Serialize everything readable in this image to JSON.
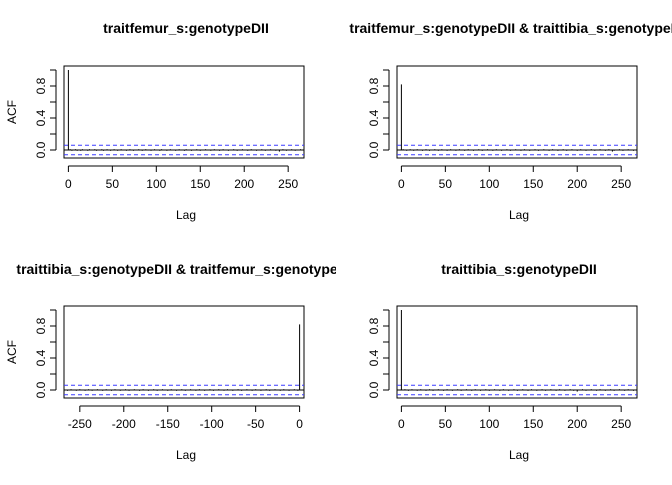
{
  "chart_data": [
    {
      "type": "bar",
      "title": "traitfemur_s:genotypeDII",
      "xlabel": "Lag",
      "ylabel": "ACF",
      "xlim": [
        -5,
        268
      ],
      "ylim": [
        -0.1,
        1.05
      ],
      "xticks": [
        0,
        50,
        100,
        150,
        200,
        250
      ],
      "yticks": [
        0.0,
        0.2,
        0.4,
        0.6,
        0.8,
        1.0
      ],
      "ytick_labels": [
        "0.0",
        "",
        "0.4",
        "",
        "0.8",
        ""
      ],
      "conf_band": 0.06,
      "x": [
        0,
        2,
        4,
        6,
        8,
        10,
        12,
        14,
        16,
        18,
        20,
        22,
        24,
        26,
        28,
        30,
        32,
        34,
        36,
        38,
        40,
        42,
        44,
        46,
        48,
        50,
        52,
        54,
        56,
        58,
        60,
        62,
        64,
        66,
        68,
        70,
        72,
        74,
        76,
        78,
        80,
        82,
        84,
        86,
        88,
        90,
        92,
        94,
        96,
        98,
        100,
        102,
        104,
        106,
        108,
        110,
        112,
        114,
        116,
        118,
        120,
        122,
        124,
        126,
        128,
        130,
        132,
        134,
        136,
        138,
        140,
        142,
        144,
        146,
        148,
        150,
        152,
        154,
        156,
        158,
        160,
        162,
        164,
        166,
        168,
        170,
        172,
        174,
        176,
        178,
        180,
        182,
        184,
        186,
        188,
        190,
        192,
        194,
        196,
        198,
        200,
        202,
        204,
        206,
        208,
        210,
        212,
        214,
        216,
        218,
        220,
        222,
        224,
        226,
        228,
        230,
        232,
        234,
        236,
        238,
        240,
        242,
        244,
        246,
        248,
        250,
        252,
        254,
        256,
        258,
        260,
        262,
        264
      ],
      "values": [
        1.0,
        0.01,
        -0.01,
        0.0,
        0.01,
        -0.01,
        0.0,
        -0.01,
        0.01,
        0.0,
        0.0,
        -0.01,
        0.01,
        0.0,
        0.0,
        0.01,
        -0.01,
        0.0,
        0.0,
        0.01,
        -0.01,
        0.0,
        0.01,
        0.0,
        -0.01,
        0.0,
        0.01,
        0.0,
        -0.01,
        0.0,
        0.01,
        0.0,
        0.0,
        -0.01,
        0.0,
        0.01,
        0.0,
        -0.01,
        0.0,
        0.0,
        0.01,
        0.0,
        -0.01,
        0.0,
        0.01,
        0.0,
        0.0,
        -0.01,
        0.0,
        0.01,
        0.0,
        0.0,
        -0.01,
        0.01,
        0.0,
        0.0,
        -0.01,
        0.0,
        0.01,
        0.0,
        0.0,
        -0.01,
        0.0,
        0.01,
        0.0,
        0.0,
        -0.01,
        0.01,
        0.0,
        0.0,
        -0.01,
        0.0,
        0.0,
        0.01,
        0.0,
        -0.01,
        0.0,
        0.0,
        0.01,
        0.0,
        0.0,
        -0.01,
        0.0,
        0.01,
        0.0,
        0.0,
        -0.01,
        0.0,
        0.01,
        0.0,
        0.0,
        -0.01,
        0.0,
        0.0,
        0.01,
        0.0,
        -0.01,
        0.0,
        0.0,
        0.01,
        0.0,
        0.0,
        -0.01,
        0.0,
        0.01,
        0.0,
        0.0,
        -0.01,
        0.0,
        0.0,
        0.01,
        0.0,
        -0.01,
        0.0,
        0.0,
        0.01,
        0.0,
        0.0,
        -0.01,
        0.0,
        -0.02,
        0.0,
        0.01,
        0.0,
        -0.01,
        0.0,
        0.0,
        0.01,
        0.0,
        -0.01,
        0.0,
        0.0,
        0.01
      ]
    },
    {
      "type": "bar",
      "title": "traitfemur_s:genotypeDII & traittibia_s:genotypeDII",
      "xlabel": "Lag",
      "ylabel": "",
      "xlim": [
        -5,
        268
      ],
      "ylim": [
        -0.1,
        1.05
      ],
      "xticks": [
        0,
        50,
        100,
        150,
        200,
        250
      ],
      "yticks": [
        0.0,
        0.2,
        0.4,
        0.6,
        0.8,
        1.0
      ],
      "ytick_labels": [
        "0.0",
        "",
        "0.4",
        "",
        "0.8",
        ""
      ],
      "conf_band": 0.06,
      "x": [
        0,
        2,
        4,
        6,
        8,
        10,
        12,
        14,
        16,
        18,
        20,
        22,
        24,
        26,
        28,
        30,
        32,
        34,
        36,
        38,
        40,
        42,
        44,
        46,
        48,
        50,
        52,
        54,
        56,
        58,
        60,
        62,
        64,
        66,
        68,
        70,
        72,
        74,
        76,
        78,
        80,
        82,
        84,
        86,
        88,
        90,
        92,
        94,
        96,
        98,
        100,
        102,
        104,
        106,
        108,
        110,
        112,
        114,
        116,
        118,
        120,
        122,
        124,
        126,
        128,
        130,
        132,
        134,
        136,
        138,
        140,
        142,
        144,
        146,
        148,
        150,
        152,
        154,
        156,
        158,
        160,
        162,
        164,
        166,
        168,
        170,
        172,
        174,
        176,
        178,
        180,
        182,
        184,
        186,
        188,
        190,
        192,
        194,
        196,
        198,
        200,
        202,
        204,
        206,
        208,
        210,
        212,
        214,
        216,
        218,
        220,
        222,
        224,
        226,
        228,
        230,
        232,
        234,
        236,
        238,
        240,
        242,
        244,
        246,
        248,
        250,
        252,
        254,
        256,
        258,
        260,
        262,
        264
      ],
      "values": [
        0.82,
        0.01,
        0.0,
        -0.01,
        0.0,
        0.01,
        0.0,
        -0.01,
        0.0,
        0.01,
        0.0,
        0.0,
        -0.01,
        0.0,
        0.01,
        0.0,
        -0.01,
        0.0,
        0.0,
        0.01,
        0.0,
        -0.01,
        0.0,
        0.01,
        0.0,
        0.0,
        -0.01,
        0.0,
        0.01,
        0.0,
        0.0,
        -0.01,
        0.0,
        0.01,
        0.0,
        0.0,
        -0.01,
        0.0,
        0.01,
        0.0,
        0.0,
        -0.01,
        0.0,
        0.0,
        0.01,
        0.0,
        -0.01,
        0.0,
        0.0,
        0.01,
        0.0,
        0.0,
        -0.01,
        0.0,
        0.01,
        0.0,
        0.0,
        -0.01,
        0.0,
        0.0,
        0.01,
        0.0,
        -0.01,
        0.0,
        0.0,
        0.01,
        0.0,
        0.0,
        -0.01,
        0.0,
        0.01,
        0.0,
        0.0,
        -0.01,
        0.0,
        0.0,
        0.01,
        0.0,
        -0.01,
        0.0,
        0.0,
        0.01,
        0.0,
        0.0,
        -0.01,
        0.0,
        0.01,
        0.0,
        0.0,
        -0.01,
        0.0,
        0.0,
        0.01,
        0.0,
        -0.01,
        0.0,
        0.0,
        0.01,
        0.0,
        0.0,
        -0.01,
        0.0,
        0.01,
        0.0,
        0.0,
        -0.01,
        0.0,
        0.0,
        0.01,
        0.0,
        -0.01,
        0.0,
        0.0,
        0.01,
        0.0,
        0.0,
        -0.01,
        0.0,
        0.01,
        0.0,
        -0.02,
        -0.01,
        0.0,
        0.0,
        0.01,
        0.0,
        -0.01,
        0.0,
        0.0,
        0.01,
        0.0,
        0.0,
        -0.01
      ]
    },
    {
      "type": "bar",
      "title": "traittibia_s:genotypeDII & traitfemur_s:genotypeDII",
      "xlabel": "Lag",
      "ylabel": "ACF",
      "xlim": [
        -268,
        5
      ],
      "ylim": [
        -0.1,
        1.05
      ],
      "xticks": [
        -250,
        -200,
        -150,
        -100,
        -50,
        0
      ],
      "yticks": [
        0.0,
        0.2,
        0.4,
        0.6,
        0.8,
        1.0
      ],
      "ytick_labels": [
        "0.0",
        "",
        "0.4",
        "",
        "0.8",
        ""
      ],
      "conf_band": 0.06,
      "x": [
        -264,
        -262,
        -260,
        -258,
        -256,
        -254,
        -252,
        -250,
        -248,
        -246,
        -244,
        -242,
        -240,
        -238,
        -236,
        -234,
        -232,
        -230,
        -228,
        -226,
        -224,
        -222,
        -220,
        -218,
        -216,
        -214,
        -212,
        -210,
        -208,
        -206,
        -204,
        -202,
        -200,
        -198,
        -196,
        -194,
        -192,
        -190,
        -188,
        -186,
        -184,
        -182,
        -180,
        -178,
        -176,
        -174,
        -172,
        -170,
        -168,
        -166,
        -164,
        -162,
        -160,
        -158,
        -156,
        -154,
        -152,
        -150,
        -148,
        -146,
        -144,
        -142,
        -140,
        -138,
        -136,
        -134,
        -132,
        -130,
        -128,
        -126,
        -124,
        -122,
        -120,
        -118,
        -116,
        -114,
        -112,
        -110,
        -108,
        -106,
        -104,
        -102,
        -100,
        -98,
        -96,
        -94,
        -92,
        -90,
        -88,
        -86,
        -84,
        -82,
        -80,
        -78,
        -76,
        -74,
        -72,
        -70,
        -68,
        -66,
        -64,
        -62,
        -60,
        -58,
        -56,
        -54,
        -52,
        -50,
        -48,
        -46,
        -44,
        -42,
        -40,
        -38,
        -36,
        -34,
        -32,
        -30,
        -28,
        -26,
        -24,
        -22,
        -20,
        -18,
        -16,
        -14,
        -12,
        -10,
        -8,
        -6,
        -4,
        -2,
        0
      ],
      "values": [
        -0.01,
        0.0,
        0.01,
        0.0,
        0.0,
        -0.01,
        0.0,
        0.01,
        0.0,
        0.0,
        -0.01,
        0.0,
        0.01,
        0.0,
        -0.01,
        0.0,
        0.0,
        0.01,
        0.0,
        0.0,
        -0.01,
        0.0,
        0.01,
        0.0,
        0.0,
        -0.01,
        0.0,
        0.01,
        0.0,
        0.0,
        -0.01,
        0.0,
        0.0,
        0.01,
        0.0,
        -0.01,
        0.0,
        0.0,
        0.01,
        0.0,
        0.0,
        -0.01,
        0.0,
        0.01,
        0.0,
        0.0,
        -0.01,
        0.0,
        0.0,
        0.01,
        0.0,
        -0.01,
        0.0,
        0.0,
        0.01,
        0.0,
        0.0,
        -0.01,
        0.0,
        0.01,
        0.0,
        0.0,
        -0.01,
        0.0,
        0.0,
        0.01,
        0.0,
        -0.01,
        0.0,
        0.0,
        0.01,
        0.0,
        0.0,
        -0.01,
        0.0,
        0.01,
        0.0,
        0.0,
        -0.01,
        0.0,
        0.0,
        0.01,
        0.0,
        -0.01,
        0.0,
        0.0,
        0.01,
        0.0,
        0.0,
        -0.01,
        0.0,
        0.01,
        0.0,
        0.0,
        -0.01,
        0.0,
        0.0,
        0.01,
        0.0,
        -0.01,
        0.0,
        0.0,
        0.01,
        0.0,
        0.0,
        -0.01,
        0.0,
        0.01,
        0.0,
        0.0,
        -0.01,
        0.0,
        0.0,
        0.01,
        0.0,
        -0.01,
        0.0,
        0.0,
        0.01,
        0.0,
        0.0,
        -0.01,
        0.0,
        0.01,
        0.0,
        0.0,
        -0.01,
        0.0,
        0.0,
        0.01,
        0.0,
        -0.01,
        0.82
      ]
    },
    {
      "type": "bar",
      "title": "traittibia_s:genotypeDII",
      "xlabel": "Lag",
      "ylabel": "",
      "xlim": [
        -5,
        268
      ],
      "ylim": [
        -0.1,
        1.05
      ],
      "xticks": [
        0,
        50,
        100,
        150,
        200,
        250
      ],
      "yticks": [
        0.0,
        0.2,
        0.4,
        0.6,
        0.8,
        1.0
      ],
      "ytick_labels": [
        "0.0",
        "",
        "0.4",
        "",
        "0.8",
        ""
      ],
      "conf_band": 0.06,
      "x": [
        0,
        2,
        4,
        6,
        8,
        10,
        12,
        14,
        16,
        18,
        20,
        22,
        24,
        26,
        28,
        30,
        32,
        34,
        36,
        38,
        40,
        42,
        44,
        46,
        48,
        50,
        52,
        54,
        56,
        58,
        60,
        62,
        64,
        66,
        68,
        70,
        72,
        74,
        76,
        78,
        80,
        82,
        84,
        86,
        88,
        90,
        92,
        94,
        96,
        98,
        100,
        102,
        104,
        106,
        108,
        110,
        112,
        114,
        116,
        118,
        120,
        122,
        124,
        126,
        128,
        130,
        132,
        134,
        136,
        138,
        140,
        142,
        144,
        146,
        148,
        150,
        152,
        154,
        156,
        158,
        160,
        162,
        164,
        166,
        168,
        170,
        172,
        174,
        176,
        178,
        180,
        182,
        184,
        186,
        188,
        190,
        192,
        194,
        196,
        198,
        200,
        202,
        204,
        206,
        208,
        210,
        212,
        214,
        216,
        218,
        220,
        222,
        224,
        226,
        228,
        230,
        232,
        234,
        236,
        238,
        240,
        242,
        244,
        246,
        248,
        250,
        252,
        254,
        256,
        258,
        260,
        262,
        264
      ],
      "values": [
        1.0,
        0.0,
        0.01,
        0.0,
        -0.01,
        0.0,
        0.01,
        0.0,
        0.0,
        -0.01,
        0.0,
        0.01,
        0.0,
        0.0,
        -0.01,
        0.0,
        0.01,
        0.0,
        -0.01,
        0.0,
        0.0,
        0.01,
        0.0,
        0.0,
        -0.01,
        0.0,
        0.01,
        0.0,
        0.0,
        -0.01,
        0.0,
        0.0,
        0.01,
        0.0,
        -0.01,
        0.0,
        0.0,
        0.01,
        0.0,
        0.0,
        -0.01,
        0.0,
        0.01,
        0.0,
        0.0,
        -0.01,
        0.0,
        0.0,
        0.01,
        0.0,
        -0.01,
        0.0,
        0.0,
        0.01,
        0.0,
        0.0,
        -0.01,
        0.0,
        0.01,
        0.0,
        0.0,
        -0.01,
        0.0,
        0.0,
        0.01,
        0.0,
        -0.01,
        0.0,
        0.0,
        0.01,
        0.0,
        0.0,
        -0.01,
        0.0,
        0.01,
        0.0,
        0.0,
        -0.01,
        0.0,
        0.0,
        0.01,
        0.0,
        -0.01,
        0.0,
        0.0,
        0.01,
        0.0,
        0.0,
        -0.01,
        0.0,
        0.01,
        0.0,
        0.0,
        -0.01,
        0.0,
        0.0,
        0.01,
        0.0,
        -0.01,
        0.0,
        -0.02,
        0.0,
        0.0,
        0.01,
        0.0,
        -0.01,
        0.0,
        0.0,
        0.01,
        0.0,
        0.0,
        -0.01,
        0.0,
        0.01,
        0.0,
        0.0,
        -0.01,
        0.0,
        0.0,
        0.01,
        0.0,
        -0.01,
        0.0,
        0.0,
        0.01,
        0.0,
        0.0,
        -0.01,
        0.0,
        0.01,
        0.0,
        0.0,
        -0.01
      ]
    }
  ],
  "colors": {
    "conf_band": "#3b3bff",
    "bar": "#000000"
  }
}
